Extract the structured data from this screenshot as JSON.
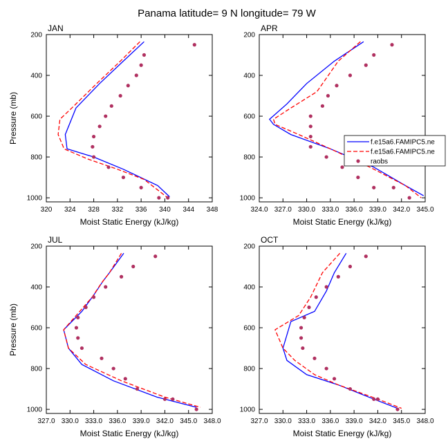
{
  "title": "Panama  latitude= 9 N longitude= 79 W",
  "legend": {
    "entries": [
      {
        "label": "f.e15a6.FAMIPC5.ne",
        "color": "#0000ff",
        "style": "solid"
      },
      {
        "label": "f.e15a6.FAMIPC5.ne",
        "color": "#ff0000",
        "style": "dashed"
      },
      {
        "label": "raobs",
        "color": "#b03060",
        "style": "marker"
      }
    ]
  },
  "chart_data": [
    {
      "type": "line",
      "panel": "JAN",
      "title": "JAN",
      "xlabel": "Moist Static Energy (kJ/kg)",
      "ylabel": "Pressure (mb)",
      "xlim": [
        320,
        348
      ],
      "ylim": [
        1020,
        200
      ],
      "xticks": [
        "320",
        "324",
        "328",
        "332",
        "336",
        "340",
        "344",
        "348"
      ],
      "yticks": [
        "200",
        "400",
        "600",
        "800",
        "1000"
      ],
      "series": [
        {
          "name": "f.e15a6.FAMIPC5.ne",
          "color": "#0000ff",
          "style": "solid",
          "x": [
            336.5,
            333.0,
            329.0,
            325.0,
            323.2,
            323.5,
            328.0,
            333.0,
            338.8,
            340.8
          ],
          "y": [
            235,
            330,
            440,
            560,
            690,
            760,
            800,
            860,
            940,
            995
          ]
        },
        {
          "name": "f.e15a6.FAMIPC5.ne",
          "color": "#ff0000",
          "style": "dashed",
          "x": [
            335.8,
            332.5,
            328.5,
            324.3,
            322.3,
            322.0,
            323.0,
            327.0,
            332.0,
            336.5,
            340.5
          ],
          "y": [
            235,
            330,
            440,
            560,
            615,
            690,
            760,
            810,
            860,
            910,
            1000
          ]
        },
        {
          "name": "raobs",
          "color": "#b03060",
          "style": "marker",
          "x": [
            345.0,
            336.5,
            336.0,
            335.2,
            333.8,
            332.5,
            331.0,
            330.0,
            329.0,
            328.0,
            327.8,
            328.0,
            330.5,
            333.0,
            336.0,
            339.0,
            340.5
          ],
          "y": [
            250,
            300,
            350,
            400,
            450,
            500,
            550,
            600,
            650,
            700,
            750,
            800,
            850,
            900,
            950,
            1000,
            1000
          ]
        }
      ]
    },
    {
      "type": "line",
      "panel": "APR",
      "title": "APR",
      "xlabel": "Moist Static Energy (kJ/kg)",
      "ylabel": "",
      "xlim": [
        324.0,
        345.0
      ],
      "ylim": [
        1020,
        200
      ],
      "xticks": [
        "324.0",
        "327.0",
        "330.0",
        "333.0",
        "336.0",
        "339.0",
        "342.0",
        "345.0"
      ],
      "yticks": [
        "200",
        "400",
        "600",
        "800",
        "1000"
      ],
      "series": [
        {
          "name": "f.e15a6.FAMIPC5.ne",
          "color": "#0000ff",
          "style": "solid",
          "x": [
            337.2,
            333.5,
            330.0,
            327.5,
            325.3,
            325.8,
            328.0,
            333.0,
            338.5,
            342.5,
            344.8
          ],
          "y": [
            235,
            330,
            440,
            540,
            615,
            640,
            690,
            760,
            850,
            940,
            990
          ]
        },
        {
          "name": "f.e15a6.FAMIPC5.ne",
          "color": "#ff0000",
          "style": "dashed",
          "x": [
            336.8,
            334.0,
            332.2,
            331.3,
            328.0,
            325.8,
            326.0,
            329.0,
            333.0,
            338.0,
            342.5,
            344.5
          ],
          "y": [
            235,
            330,
            430,
            480,
            560,
            615,
            640,
            690,
            760,
            850,
            940,
            1000
          ]
        },
        {
          "name": "raobs",
          "color": "#b03060",
          "style": "marker",
          "x": [
            340.8,
            338.5,
            337.5,
            335.5,
            333.8,
            332.7,
            332.0,
            330.5,
            330.5,
            330.5,
            330.5,
            332.5,
            334.5,
            336.5,
            338.5,
            341.0,
            343.0
          ],
          "y": [
            250,
            300,
            350,
            400,
            450,
            500,
            550,
            600,
            650,
            700,
            750,
            800,
            850,
            900,
            950,
            950,
            1000
          ]
        }
      ]
    },
    {
      "type": "line",
      "panel": "JUL",
      "title": "JUL",
      "xlabel": "Moist Static Energy (kJ/kg)",
      "ylabel": "Pressure (mb)",
      "xlim": [
        327.0,
        348.0
      ],
      "ylim": [
        1020,
        200
      ],
      "xticks": [
        "327.0",
        "330.0",
        "333.0",
        "336.0",
        "339.0",
        "342.0",
        "345.0",
        "348.0"
      ],
      "yticks": [
        "200",
        "400",
        "600",
        "800",
        "1000"
      ],
      "series": [
        {
          "name": "f.e15a6.FAMIPC5.ne",
          "color": "#0000ff",
          "style": "solid",
          "x": [
            336.8,
            335.0,
            334.2,
            333.0,
            331.5,
            329.2,
            329.8,
            331.5,
            335.5,
            341.0,
            346.0
          ],
          "y": [
            235,
            330,
            370,
            440,
            520,
            610,
            700,
            780,
            860,
            940,
            990
          ]
        },
        {
          "name": "f.e15a6.FAMIPC5.ne",
          "color": "#ff0000",
          "style": "dashed",
          "x": [
            336.5,
            335.0,
            334.0,
            332.8,
            331.0,
            329.2,
            329.8,
            332.0,
            336.5,
            342.0,
            346.5
          ],
          "y": [
            235,
            330,
            380,
            450,
            530,
            610,
            700,
            780,
            860,
            940,
            990
          ]
        },
        {
          "name": "raobs",
          "color": "#b03060",
          "style": "marker",
          "x": [
            340.8,
            338.0,
            336.5,
            334.5,
            333.0,
            332.0,
            331.0,
            330.8,
            331.0,
            331.5,
            334.0,
            335.5,
            337.0,
            338.5,
            342.0,
            343.0,
            346.0
          ],
          "y": [
            250,
            300,
            350,
            400,
            450,
            500,
            550,
            600,
            650,
            700,
            750,
            800,
            850,
            900,
            950,
            950,
            1000
          ]
        }
      ]
    },
    {
      "type": "line",
      "panel": "OCT",
      "title": "OCT",
      "xlabel": "Moist Static Energy (kJ/kg)",
      "ylabel": "",
      "xlim": [
        327.0,
        348.0
      ],
      "ylim": [
        1020,
        200
      ],
      "xticks": [
        "327.0",
        "330.0",
        "333.0",
        "336.0",
        "339.0",
        "342.0",
        "345.0",
        "348.0"
      ],
      "yticks": [
        "200",
        "400",
        "600",
        "800",
        "1000"
      ],
      "series": [
        {
          "name": "f.e15a6.FAMIPC5.ne",
          "color": "#0000ff",
          "style": "solid",
          "x": [
            338.0,
            336.5,
            335.5,
            334.0,
            331.0,
            330.0,
            330.5,
            333.0,
            337.0,
            341.5,
            344.5
          ],
          "y": [
            235,
            330,
            420,
            520,
            570,
            700,
            760,
            830,
            880,
            950,
            995
          ]
        },
        {
          "name": "f.e15a6.FAMIPC5.ne",
          "color": "#ff0000",
          "style": "dashed",
          "x": [
            337.2,
            335.0,
            333.5,
            332.0,
            329.0,
            330.0,
            331.5,
            334.0,
            337.0,
            342.0,
            345.0
          ],
          "y": [
            235,
            330,
            450,
            540,
            610,
            700,
            760,
            830,
            880,
            950,
            995
          ]
        },
        {
          "name": "raobs",
          "color": "#b03060",
          "style": "marker",
          "x": [
            340.5,
            338.5,
            337.0,
            335.5,
            334.2,
            333.3,
            332.7,
            332.3,
            332.3,
            332.5,
            334.0,
            335.5,
            336.5,
            338.5,
            341.5,
            342.0,
            344.5
          ],
          "y": [
            250,
            300,
            350,
            400,
            450,
            500,
            550,
            600,
            650,
            700,
            750,
            800,
            850,
            900,
            950,
            950,
            1000
          ]
        }
      ]
    }
  ]
}
